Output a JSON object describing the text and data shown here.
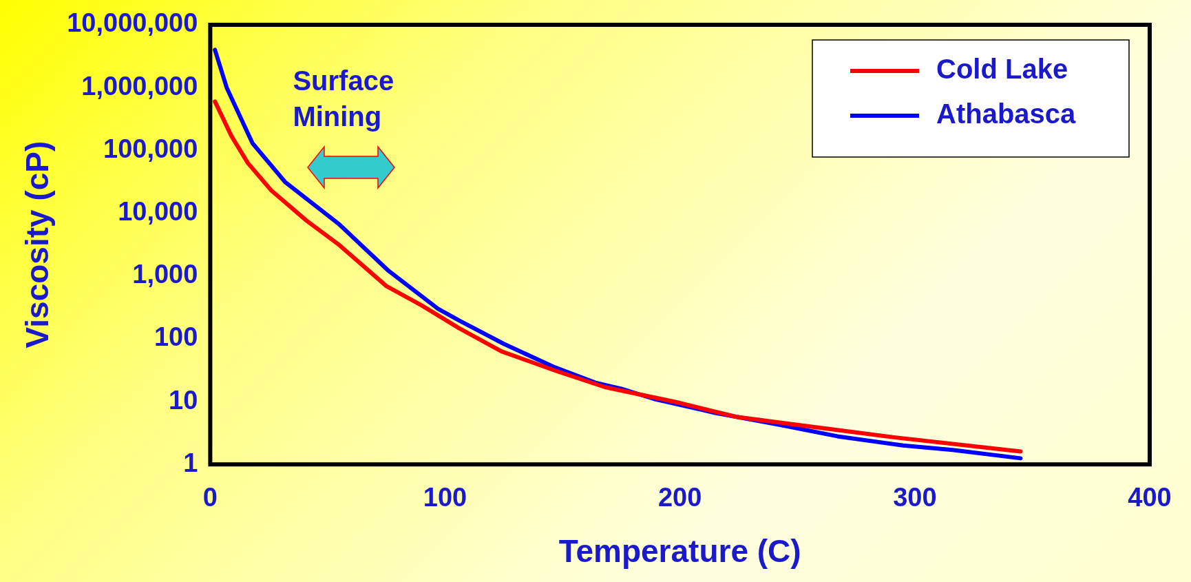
{
  "chart_data": {
    "type": "line",
    "xlabel": "Temperature (C)",
    "ylabel": "Viscosity (cP)",
    "log": "y",
    "xlim": [
      0,
      400
    ],
    "xticks": [
      0,
      100,
      200,
      300,
      400
    ],
    "ylim": [
      1,
      10000000
    ],
    "yticks": [
      1,
      10,
      100,
      {
        "value": 1000,
        "label": "1,000"
      },
      {
        "value": 10000,
        "label": "10,000"
      },
      {
        "value": 100000,
        "label": "100,000"
      },
      {
        "value": 1000000,
        "label": "1,000,000"
      },
      {
        "value": 10000000,
        "label": "10,000,000"
      }
    ],
    "grid": false,
    "legend": "top right",
    "marker": "none",
    "line_style": "solid",
    "annotations": [
      "Surface Mining"
    ],
    "series": [
      {
        "name": "Cold Lake",
        "color": "#ff0000",
        "x": [
          2,
          9,
          16,
          26,
          41,
          55,
          75,
          90,
          106,
          124,
          147,
          168,
          200,
          224,
          260,
          291,
          345
        ],
        "values": [
          600000,
          170000,
          63000,
          23000,
          7600,
          3100,
          690,
          340,
          147,
          63,
          31,
          17,
          9.5,
          5.7,
          3.8,
          2.7,
          1.6
        ]
      },
      {
        "name": "Athabasca",
        "color": "#0000ff",
        "x": [
          2,
          7,
          18,
          32,
          55,
          76,
          97,
          106,
          125,
          146,
          164,
          175,
          189,
          215,
          242,
          267,
          295,
          316,
          345
        ],
        "values": [
          4000000,
          1000000,
          130000,
          31000,
          6600,
          1200,
          300,
          195,
          83,
          36,
          20,
          16,
          11,
          6.6,
          4.3,
          2.8,
          2,
          1.7,
          1.25
        ]
      }
    ]
  }
}
